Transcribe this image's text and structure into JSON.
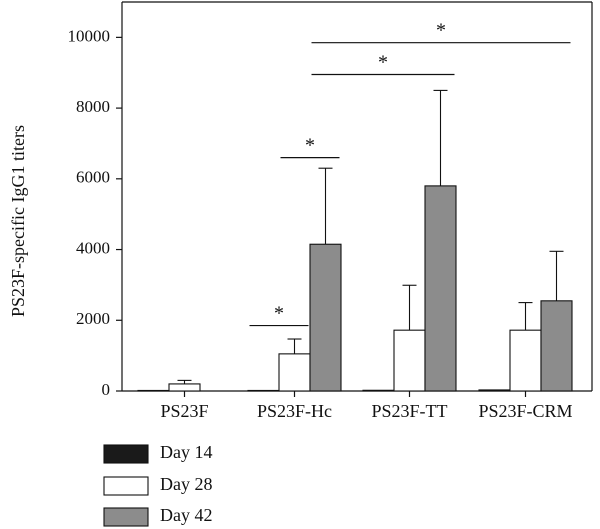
{
  "chart_data": {
    "type": "bar",
    "title": "",
    "xlabel": "",
    "ylabel": "PS23F-specific IgG1 titers",
    "ylim": [
      0,
      11000
    ],
    "yticks": [
      0,
      2000,
      4000,
      6000,
      8000,
      10000
    ],
    "ytick_labels": [
      "0",
      "2000",
      "4000",
      "6000",
      "8000",
      "10000"
    ],
    "categories": [
      "PS23F",
      "PS23F-Hc",
      "PS23F-TT",
      "PS23F-CRM"
    ],
    "series": [
      {
        "name": "Day 14",
        "color": "#1a1a1a",
        "values": [
          15,
          15,
          20,
          30
        ],
        "errors": [
          0,
          0,
          0,
          0
        ]
      },
      {
        "name": "Day 28",
        "color": "#ffffff",
        "values": [
          200,
          1050,
          1720,
          1720
        ],
        "errors": [
          100,
          420,
          1270,
          780
        ]
      },
      {
        "name": "Day 42",
        "color": "#8c8c8c",
        "values": [
          0,
          4150,
          5800,
          2550
        ],
        "errors": [
          0,
          2150,
          2700,
          1400
        ]
      }
    ],
    "significance": [
      {
        "label": "*",
        "from": "PS23F-Hc Day 14",
        "to": "PS23F-Hc Day 28",
        "y": 1850
      },
      {
        "label": "*",
        "from": "PS23F-Hc Day 28",
        "to": "PS23F-Hc Day 42",
        "y": 6600
      },
      {
        "label": "*",
        "from": "PS23F-Hc Day 42",
        "to": "PS23F-TT Day 42",
        "y": 8950
      },
      {
        "label": "*",
        "from": "PS23F-Hc Day 42",
        "to": "PS23F-CRM Day 42",
        "y": 9850
      }
    ],
    "legend": {
      "position": "bottom-left",
      "items": [
        "Day 14",
        "Day 28",
        "Day 42"
      ]
    }
  }
}
